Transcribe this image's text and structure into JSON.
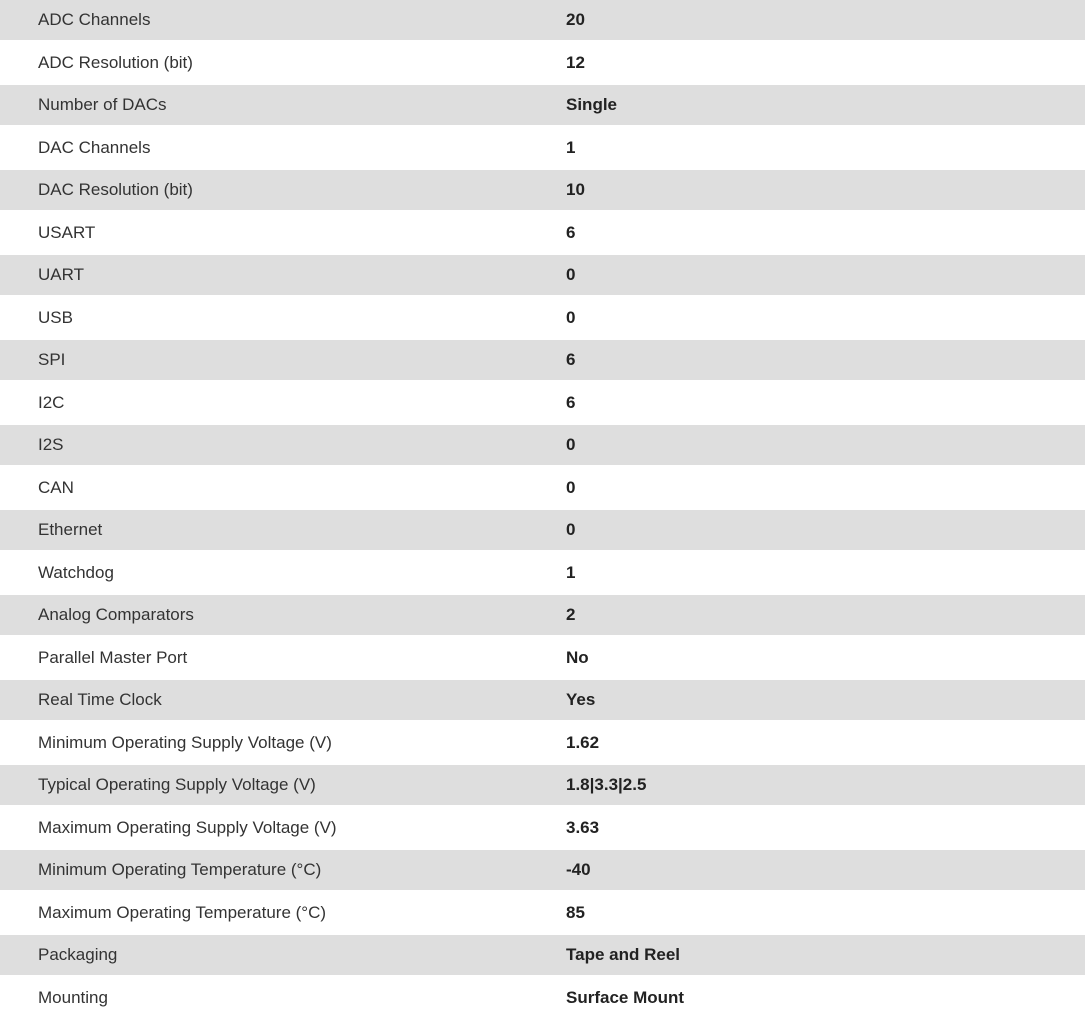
{
  "specs": [
    {
      "label": "ADC Channels",
      "value": "20"
    },
    {
      "label": "ADC Resolution (bit)",
      "value": "12"
    },
    {
      "label": "Number of DACs",
      "value": "Single"
    },
    {
      "label": "DAC Channels",
      "value": "1"
    },
    {
      "label": "DAC Resolution (bit)",
      "value": "10"
    },
    {
      "label": "USART",
      "value": "6"
    },
    {
      "label": "UART",
      "value": "0"
    },
    {
      "label": "USB",
      "value": "0"
    },
    {
      "label": "SPI",
      "value": "6"
    },
    {
      "label": "I2C",
      "value": "6"
    },
    {
      "label": "I2S",
      "value": "0"
    },
    {
      "label": "CAN",
      "value": "0"
    },
    {
      "label": "Ethernet",
      "value": "0"
    },
    {
      "label": "Watchdog",
      "value": "1"
    },
    {
      "label": "Analog Comparators",
      "value": "2"
    },
    {
      "label": "Parallel Master Port",
      "value": "No"
    },
    {
      "label": "Real Time Clock",
      "value": "Yes"
    },
    {
      "label": "Minimum Operating Supply Voltage (V)",
      "value": "1.62"
    },
    {
      "label": "Typical Operating Supply Voltage (V)",
      "value": "1.8|3.3|2.5"
    },
    {
      "label": "Maximum Operating Supply Voltage (V)",
      "value": "3.63"
    },
    {
      "label": "Minimum Operating Temperature (°C)",
      "value": "-40"
    },
    {
      "label": "Maximum Operating Temperature (°C)",
      "value": "85"
    },
    {
      "label": "Packaging",
      "value": "Tape and Reel"
    },
    {
      "label": "Mounting",
      "value": "Surface Mount"
    }
  ]
}
